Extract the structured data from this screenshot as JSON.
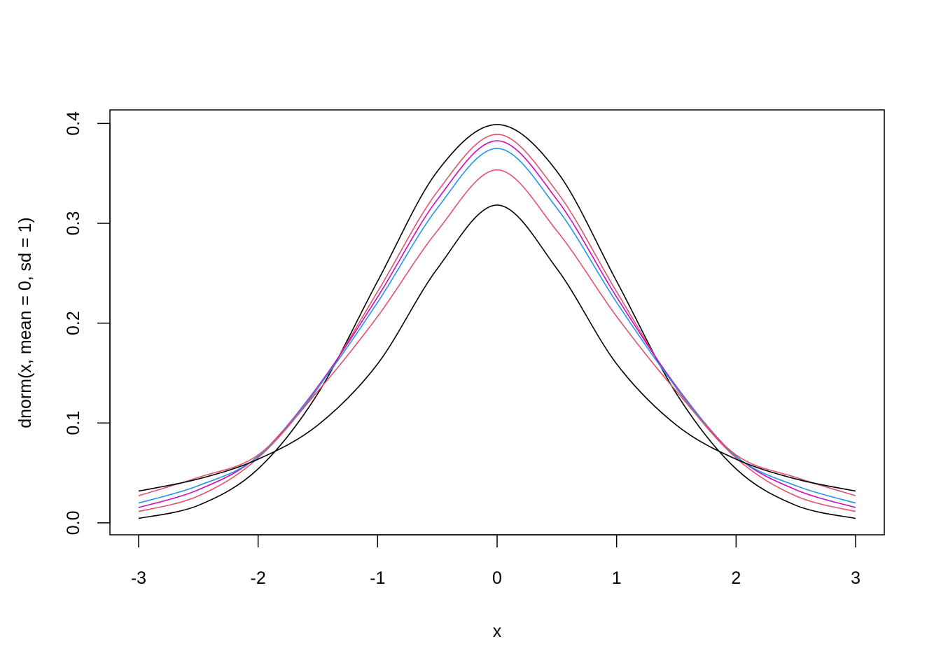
{
  "chart_data": {
    "type": "line",
    "title": "",
    "xlabel": "x",
    "ylabel": "dnorm(x, mean = 0, sd = 1)",
    "xlim": [
      -3.24,
      3.24
    ],
    "ylim": [
      -0.012,
      0.4136
    ],
    "grid": false,
    "legend": "none",
    "x_ticks": [
      -3,
      -2,
      -1,
      0,
      1,
      2,
      3
    ],
    "x_tick_labels": [
      "-3",
      "-2",
      "-1",
      "0",
      "1",
      "2",
      "3"
    ],
    "y_ticks": [
      0.0,
      0.1,
      0.2,
      0.3,
      0.4
    ],
    "y_tick_labels": [
      "0.0",
      "0.1",
      "0.2",
      "0.3",
      "0.4"
    ],
    "x": [
      -3,
      -2.5,
      -2,
      -1.5,
      -1,
      -0.5,
      0,
      0.5,
      1,
      1.5,
      2,
      2.5,
      3
    ],
    "series": [
      {
        "color": "#000000",
        "values": [
          0.0044,
          0.0175,
          0.054,
          0.1295,
          0.242,
          0.3521,
          0.3989,
          0.3521,
          0.242,
          0.1295,
          0.054,
          0.0175,
          0.0044
        ]
      },
      {
        "color": "#DF536B",
        "values": [
          0.0113,
          0.0269,
          0.0649,
          0.1348,
          0.2315,
          0.3317,
          0.3891,
          0.3317,
          0.2315,
          0.1348,
          0.0649,
          0.0269,
          0.0113
        ]
      },
      {
        "color": "#CD0BBC",
        "values": [
          0.0153,
          0.0331,
          0.0667,
          0.1366,
          0.2262,
          0.3238,
          0.3827,
          0.3238,
          0.2262,
          0.1366,
          0.0667,
          0.0331,
          0.0153
        ]
      },
      {
        "color": "#2297E6",
        "values": [
          0.0198,
          0.0372,
          0.0664,
          0.1355,
          0.2208,
          0.3152,
          0.375,
          0.3152,
          0.2208,
          0.1355,
          0.0664,
          0.0372,
          0.0198
        ]
      },
      {
        "color": "#DF536B",
        "values": [
          0.0271,
          0.0455,
          0.068,
          0.1318,
          0.2067,
          0.2925,
          0.3535,
          0.2925,
          0.2067,
          0.1318,
          0.068,
          0.0455,
          0.0271
        ]
      },
      {
        "color": "#000000",
        "values": [
          0.0318,
          0.0439,
          0.0637,
          0.0979,
          0.1592,
          0.2546,
          0.3183,
          0.2546,
          0.1592,
          0.0979,
          0.0637,
          0.0439,
          0.0318
        ]
      }
    ]
  }
}
